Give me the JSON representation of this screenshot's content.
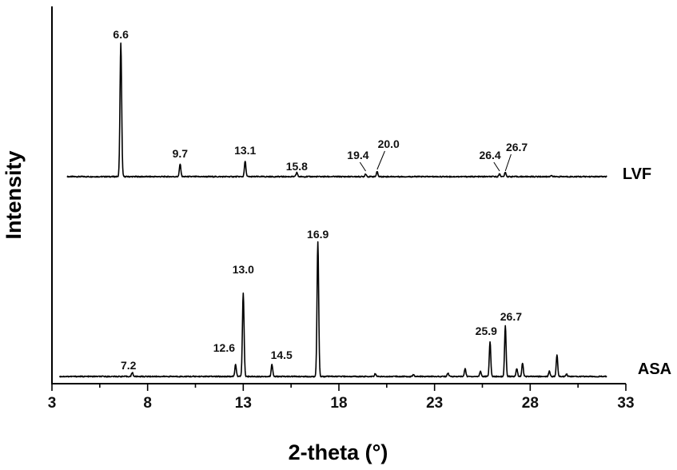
{
  "chart_data": {
    "type": "line",
    "xlabel": "2-theta (°)",
    "ylabel": "Intensity",
    "xlim": [
      3,
      33
    ],
    "xticks": [
      3,
      8,
      13,
      18,
      23,
      28,
      33
    ],
    "grid": false,
    "series": [
      {
        "name": "LVF",
        "color": "#000000",
        "peaks": [
          {
            "x": 6.6,
            "height": 0.95,
            "label": "6.6"
          },
          {
            "x": 9.7,
            "height": 0.09,
            "label": "9.7"
          },
          {
            "x": 13.1,
            "height": 0.11,
            "label": "13.1"
          },
          {
            "x": 15.8,
            "height": 0.03,
            "label": "15.8"
          },
          {
            "x": 19.4,
            "height": 0.02,
            "label": "19.4"
          },
          {
            "x": 20.0,
            "height": 0.035,
            "label": "20.0"
          },
          {
            "x": 26.4,
            "height": 0.02,
            "label": "26.4"
          },
          {
            "x": 26.7,
            "height": 0.03,
            "label": "26.7"
          },
          {
            "x": 29.1,
            "height": 0.01,
            "label": ""
          }
        ]
      },
      {
        "name": "ASA",
        "color": "#000000",
        "peaks": [
          {
            "x": 7.2,
            "height": 0.03,
            "label": "7.2"
          },
          {
            "x": 12.6,
            "height": 0.09,
            "label": "12.6"
          },
          {
            "x": 13.0,
            "height": 0.62,
            "label": "13.0"
          },
          {
            "x": 14.5,
            "height": 0.09,
            "label": "14.5"
          },
          {
            "x": 16.9,
            "height": 1.0,
            "label": "16.9"
          },
          {
            "x": 19.9,
            "height": 0.02,
            "label": ""
          },
          {
            "x": 21.9,
            "height": 0.015,
            "label": ""
          },
          {
            "x": 23.7,
            "height": 0.025,
            "label": ""
          },
          {
            "x": 24.6,
            "height": 0.06,
            "label": ""
          },
          {
            "x": 25.4,
            "height": 0.04,
            "label": ""
          },
          {
            "x": 25.9,
            "height": 0.26,
            "label": "25.9"
          },
          {
            "x": 26.7,
            "height": 0.38,
            "label": "26.7"
          },
          {
            "x": 27.3,
            "height": 0.06,
            "label": ""
          },
          {
            "x": 27.6,
            "height": 0.1,
            "label": ""
          },
          {
            "x": 29.0,
            "height": 0.04,
            "label": ""
          },
          {
            "x": 29.4,
            "height": 0.16,
            "label": ""
          },
          {
            "x": 29.9,
            "height": 0.02,
            "label": ""
          }
        ]
      }
    ]
  }
}
